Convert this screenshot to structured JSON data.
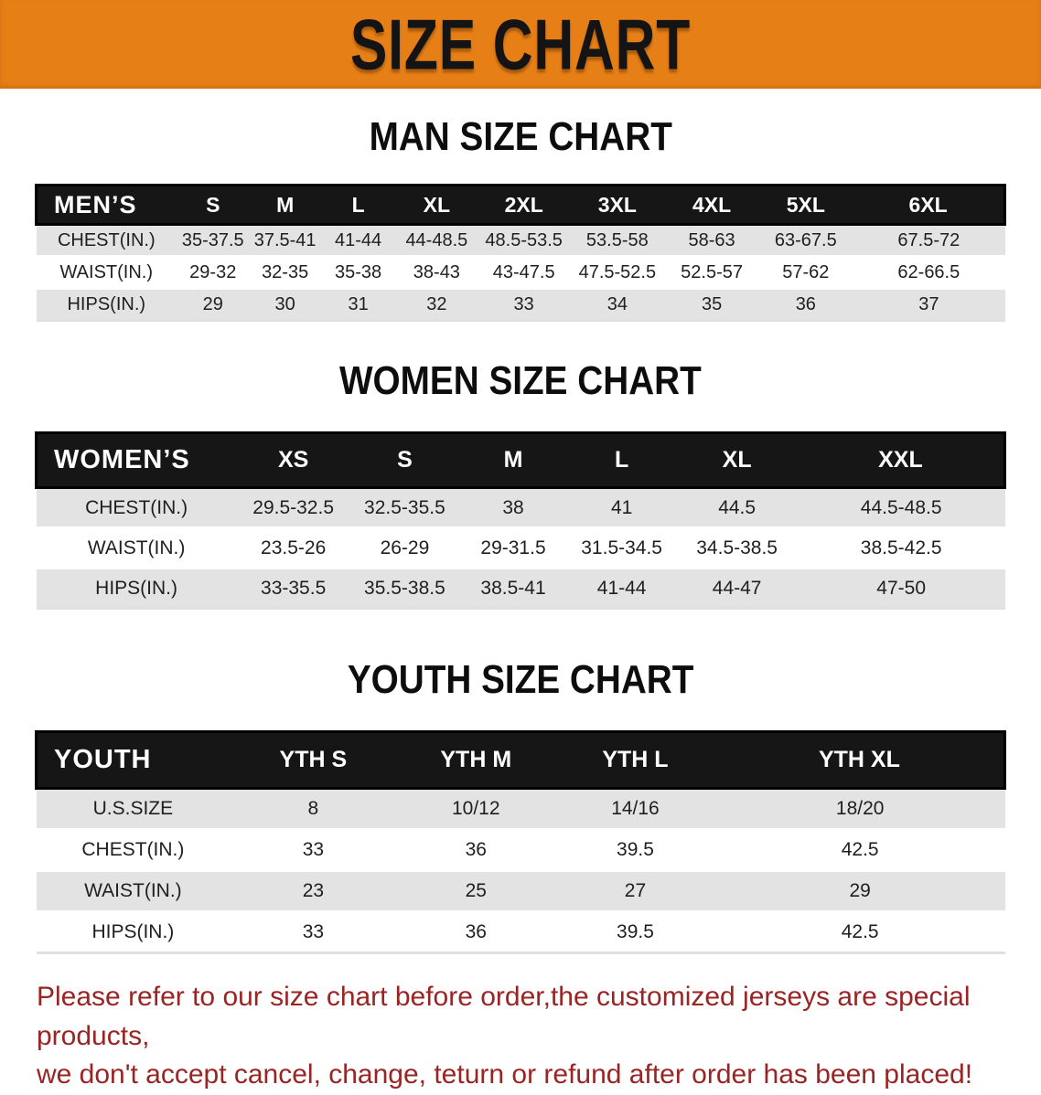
{
  "banner": {
    "title": "SIZE CHART"
  },
  "men": {
    "heading": "MAN SIZE CHART",
    "table": {
      "header_label": "MEN’S",
      "columns": [
        "S",
        "M",
        "L",
        "XL",
        "2XL",
        "3XL",
        "4XL",
        "5XL",
        "6XL"
      ],
      "rows": [
        {
          "label": "CHEST(IN.)",
          "values": [
            "35-37.5",
            "37.5-41",
            "41-44",
            "44-48.5",
            "48.5-53.5",
            "53.5-58",
            "58-63",
            "63-67.5",
            "67.5-72"
          ]
        },
        {
          "label": "WAIST(IN.)",
          "values": [
            "29-32",
            "32-35",
            "35-38",
            "38-43",
            "43-47.5",
            "47.5-52.5",
            "52.5-57",
            "57-62",
            "62-66.5"
          ]
        },
        {
          "label": "HIPS(IN.)",
          "values": [
            "29",
            "30",
            "31",
            "32",
            "33",
            "34",
            "35",
            "36",
            "37"
          ]
        }
      ]
    }
  },
  "women": {
    "heading": "WOMEN SIZE CHART",
    "table": {
      "header_label": "WOMEN’S",
      "columns": [
        "XS",
        "S",
        "M",
        "L",
        "XL",
        "XXL"
      ],
      "rows": [
        {
          "label": "CHEST(IN.)",
          "values": [
            "29.5-32.5",
            "32.5-35.5",
            "38",
            "41",
            "44.5",
            "44.5-48.5"
          ]
        },
        {
          "label": "WAIST(IN.)",
          "values": [
            "23.5-26",
            "26-29",
            "29-31.5",
            "31.5-34.5",
            "34.5-38.5",
            "38.5-42.5"
          ]
        },
        {
          "label": "HIPS(IN.)",
          "values": [
            "33-35.5",
            "35.5-38.5",
            "38.5-41",
            "41-44",
            "44-47",
            "47-50"
          ]
        }
      ]
    }
  },
  "youth": {
    "heading": "YOUTH SIZE CHART",
    "table": {
      "header_label": "YOUTH",
      "columns": [
        "YTH S",
        "YTH M",
        "YTH L",
        "YTH XL"
      ],
      "rows": [
        {
          "label": "U.S.SIZE",
          "values": [
            "8",
            "10/12",
            "14/16",
            "18/20"
          ]
        },
        {
          "label": "CHEST(IN.)",
          "values": [
            "33",
            "36",
            "39.5",
            "42.5"
          ]
        },
        {
          "label": "WAIST(IN.)",
          "values": [
            "23",
            "25",
            "27",
            "29"
          ]
        },
        {
          "label": "HIPS(IN.)",
          "values": [
            "33",
            "36",
            "39.5",
            "42.5"
          ]
        }
      ]
    }
  },
  "disclaimer": {
    "line1": "Please refer to our size chart before order,the customized jerseys are special products,",
    "line2": "we don't accept cancel, change, teturn or refund after order has been placed!"
  },
  "colors": {
    "banner_orange": "#E77F17",
    "header_band_black": "#161616",
    "row_gray": "#E3E3E3",
    "disclaimer_red": "#9A2424"
  }
}
